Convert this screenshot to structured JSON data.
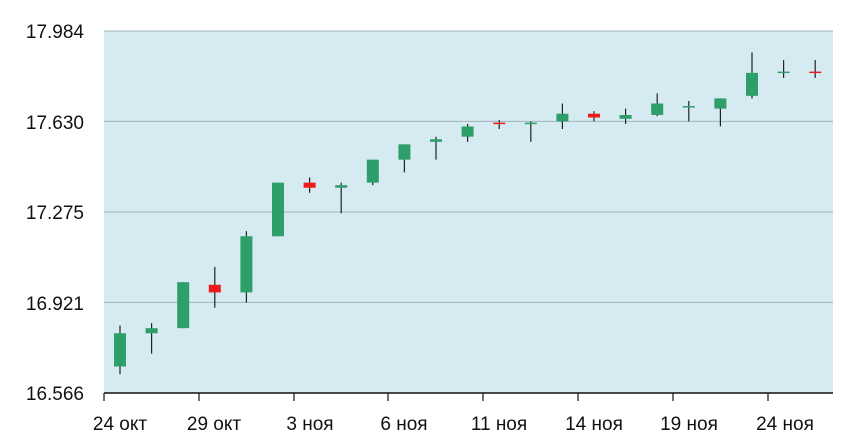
{
  "chart_data": {
    "type": "candlestick",
    "title": "",
    "xlabel": "",
    "ylabel": "",
    "ylim": [
      16.566,
      17.984
    ],
    "yticks": [
      "17.984",
      "17.630",
      "17.275",
      "16.921",
      "16.566"
    ],
    "xticks": [
      "24 окт",
      "29 окт",
      "3 ноя",
      "6 ноя",
      "11 ноя",
      "14 ноя",
      "19 ноя",
      "24 ноя"
    ],
    "grid": true,
    "legend": "none",
    "colors": {
      "up": "#2e9e6a",
      "down": "#ee1b1b",
      "plot_bg": "#d6ebf1",
      "grid": "#9fb4ba"
    },
    "candles": [
      {
        "o": 16.67,
        "h": 16.83,
        "l": 16.64,
        "c": 16.8
      },
      {
        "o": 16.8,
        "h": 16.84,
        "l": 16.72,
        "c": 16.82
      },
      {
        "o": 16.82,
        "h": 17.0,
        "l": 16.82,
        "c": 17.0
      },
      {
        "o": 16.99,
        "h": 17.06,
        "l": 16.9,
        "c": 16.96
      },
      {
        "o": 16.96,
        "h": 17.2,
        "l": 16.92,
        "c": 17.18
      },
      {
        "o": 17.18,
        "h": 17.39,
        "l": 17.18,
        "c": 17.39
      },
      {
        "o": 17.39,
        "h": 17.41,
        "l": 17.35,
        "c": 17.37
      },
      {
        "o": 17.37,
        "h": 17.39,
        "l": 17.27,
        "c": 17.38
      },
      {
        "o": 17.39,
        "h": 17.48,
        "l": 17.38,
        "c": 17.48
      },
      {
        "o": 17.48,
        "h": 17.54,
        "l": 17.43,
        "c": 17.54
      },
      {
        "o": 17.55,
        "h": 17.57,
        "l": 17.48,
        "c": 17.56
      },
      {
        "o": 17.57,
        "h": 17.62,
        "l": 17.55,
        "c": 17.61
      },
      {
        "o": 17.625,
        "h": 17.635,
        "l": 17.6,
        "c": 17.62
      },
      {
        "o": 17.62,
        "h": 17.63,
        "l": 17.55,
        "c": 17.625
      },
      {
        "o": 17.63,
        "h": 17.7,
        "l": 17.6,
        "c": 17.66
      },
      {
        "o": 17.66,
        "h": 17.67,
        "l": 17.63,
        "c": 17.645
      },
      {
        "o": 17.64,
        "h": 17.68,
        "l": 17.62,
        "c": 17.655
      },
      {
        "o": 17.655,
        "h": 17.74,
        "l": 17.65,
        "c": 17.7
      },
      {
        "o": 17.685,
        "h": 17.71,
        "l": 17.63,
        "c": 17.69
      },
      {
        "o": 17.68,
        "h": 17.72,
        "l": 17.61,
        "c": 17.72
      },
      {
        "o": 17.73,
        "h": 17.9,
        "l": 17.72,
        "c": 17.82
      },
      {
        "o": 17.82,
        "h": 17.87,
        "l": 17.8,
        "c": 17.825
      },
      {
        "o": 17.825,
        "h": 17.87,
        "l": 17.8,
        "c": 17.82
      }
    ]
  }
}
